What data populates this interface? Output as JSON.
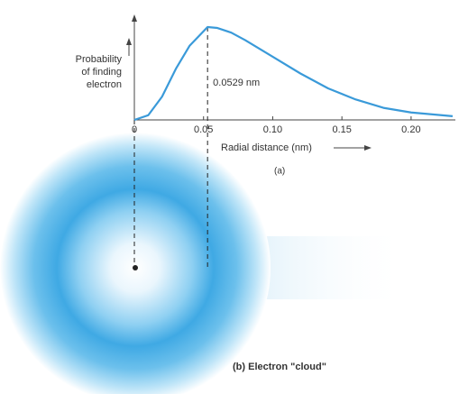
{
  "chart_data": {
    "type": "line",
    "ylabel_lines": [
      "Probability",
      "of finding",
      "electron"
    ],
    "xlabel": "Radial distance (nm)",
    "panel_a": "(a)",
    "panel_b": "(b) Electron \"cloud\"",
    "annotation": {
      "x": 0.0529,
      "label": "0.0529 nm"
    },
    "x": [
      0,
      0.01,
      0.02,
      0.03,
      0.04,
      0.0529,
      0.06,
      0.07,
      0.08,
      0.1,
      0.12,
      0.14,
      0.16,
      0.18,
      0.2,
      0.23
    ],
    "series": [
      {
        "name": "Probability",
        "color": "#3a9ad9",
        "values": [
          0,
          0.05,
          0.25,
          0.55,
          0.8,
          1,
          0.99,
          0.94,
          0.86,
          0.68,
          0.5,
          0.34,
          0.22,
          0.13,
          0.08,
          0.04
        ]
      }
    ],
    "xlim": [
      0,
      0.232
    ],
    "ylim": [
      0,
      1
    ],
    "xticks": [
      0,
      0.05,
      {
        "value": 0.1,
        "label": "0.10"
      },
      0.15,
      {
        "value": 0.2,
        "label": "0.20"
      }
    ]
  }
}
